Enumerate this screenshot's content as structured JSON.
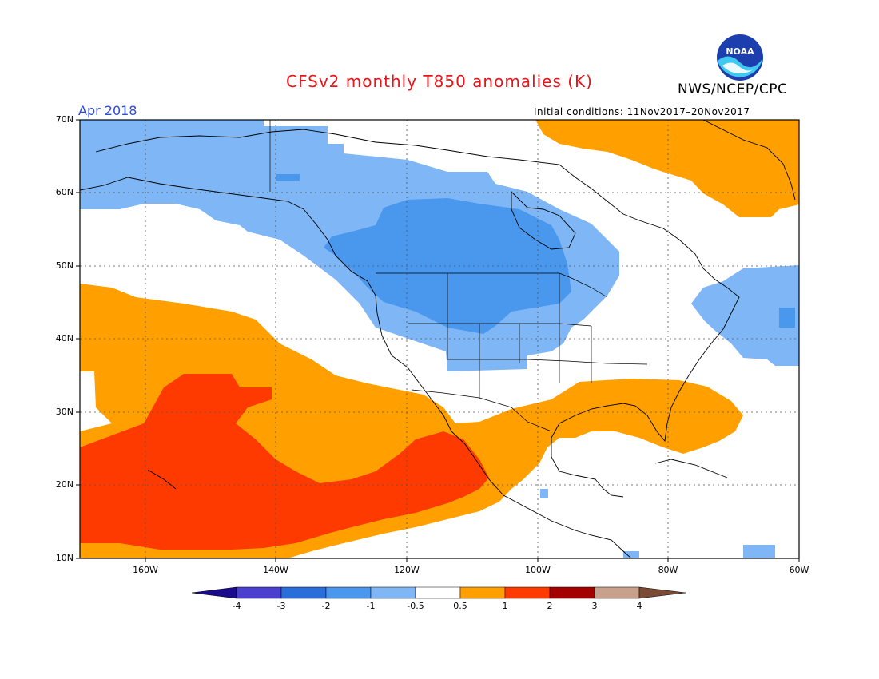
{
  "header": {
    "title": "CFSv2 monthly T850 anomalies (K)",
    "agency": "NWS/NCEP/CPC",
    "month": "Apr 2018",
    "initial_conditions": "Initial conditions: 11Nov2017–20Nov2017",
    "logo_text": "NOAA"
  },
  "map": {
    "lat_labels": [
      "70N",
      "60N",
      "50N",
      "40N",
      "30N",
      "20N",
      "10N"
    ],
    "lon_labels": [
      "160W",
      "140W",
      "120W",
      "100W",
      "80W",
      "60W"
    ],
    "extent": {
      "lon": [
        -170,
        -60
      ],
      "lat": [
        10,
        70
      ]
    },
    "field": "850 hPa temperature anomaly",
    "units": "K"
  },
  "colorbar": {
    "labels": [
      "-4",
      "-3",
      "-2",
      "-1",
      "-0.5",
      "0.5",
      "1",
      "2",
      "3",
      "4"
    ],
    "colors": [
      "#1a0a8c",
      "#4b3fcf",
      "#2a6fd9",
      "#4a97ee",
      "#7fb6f5",
      "#ffffff",
      "#ffa000",
      "#ff3a00",
      "#a50000",
      "#c9a08c",
      "#7a4a35"
    ]
  }
}
